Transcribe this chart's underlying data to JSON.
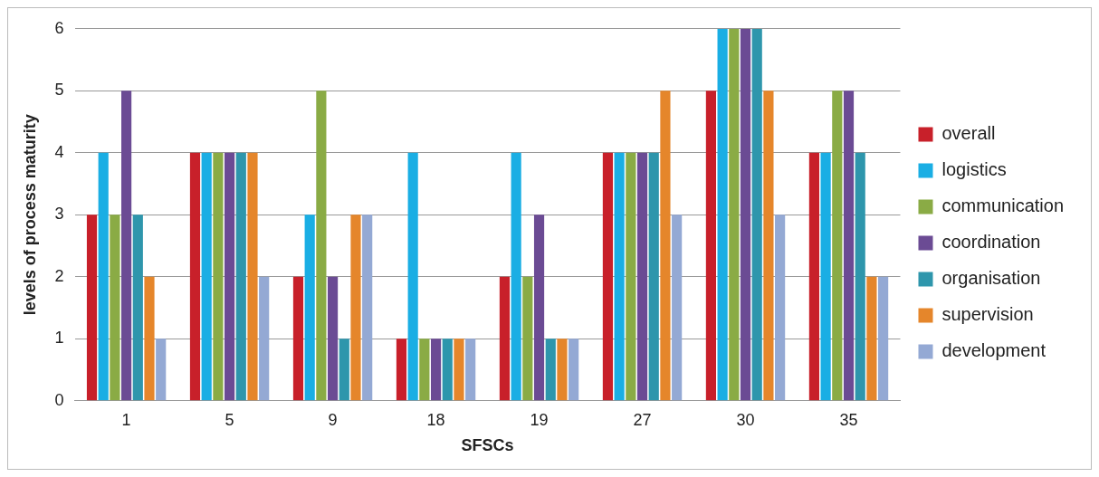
{
  "chart_data": {
    "type": "bar",
    "xlabel": "SFSCs",
    "ylabel": "levels of process maturity",
    "categories": [
      "1",
      "5",
      "9",
      "18",
      "19",
      "27",
      "30",
      "35"
    ],
    "series": [
      {
        "name": "overall",
        "color": "#c8202a",
        "values": [
          3,
          4,
          2,
          1,
          2,
          4,
          5,
          4
        ]
      },
      {
        "name": "logistics",
        "color": "#1aaee4",
        "values": [
          4,
          4,
          3,
          4,
          4,
          4,
          6,
          4
        ]
      },
      {
        "name": "communication",
        "color": "#8aab45",
        "values": [
          3,
          4,
          5,
          1,
          2,
          4,
          6,
          5
        ]
      },
      {
        "name": "coordination",
        "color": "#6b4b94",
        "values": [
          5,
          4,
          2,
          1,
          3,
          4,
          6,
          5
        ]
      },
      {
        "name": "organisation",
        "color": "#2e96ac",
        "values": [
          3,
          4,
          1,
          1,
          1,
          4,
          6,
          4
        ]
      },
      {
        "name": "supervision",
        "color": "#e5862b",
        "values": [
          2,
          4,
          3,
          1,
          1,
          5,
          5,
          2
        ]
      },
      {
        "name": "development",
        "color": "#94a9d4",
        "values": [
          1,
          2,
          3,
          1,
          1,
          3,
          3,
          2
        ]
      }
    ],
    "ylim": [
      0,
      6
    ],
    "yticks": [
      0,
      1,
      2,
      3,
      4,
      5,
      6
    ],
    "grid": "y",
    "legend": "right"
  }
}
